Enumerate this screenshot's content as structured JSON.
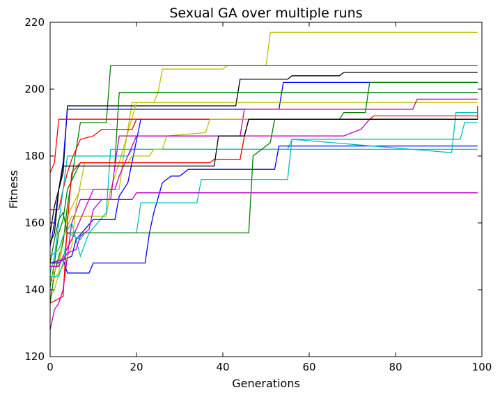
{
  "chart_data": {
    "type": "line",
    "title": "Sexual GA over multiple runs",
    "xlabel": "Generations",
    "ylabel": "Fitness",
    "xlim": [
      0,
      100
    ],
    "ylim": [
      120,
      220
    ],
    "x_ticks": [
      0,
      20,
      40,
      60,
      80,
      100
    ],
    "y_ticks": [
      120,
      140,
      160,
      180,
      200,
      220
    ],
    "grid": false,
    "legend": "none",
    "series": [
      {
        "color": "#bfbf00",
        "points": [
          [
            0,
            138
          ],
          [
            1,
            140
          ],
          [
            2,
            145
          ],
          [
            3,
            155
          ],
          [
            4,
            162
          ],
          [
            7,
            170
          ],
          [
            16,
            170
          ],
          [
            17,
            180
          ],
          [
            19,
            196
          ],
          [
            24,
            196
          ],
          [
            25,
            199
          ],
          [
            26,
            206
          ],
          [
            40,
            206
          ],
          [
            41,
            207
          ],
          [
            50,
            207
          ],
          [
            51,
            217
          ],
          [
            99,
            217
          ]
        ]
      },
      {
        "color": "#008000",
        "points": [
          [
            0,
            136
          ],
          [
            1,
            145
          ],
          [
            2,
            150
          ],
          [
            3,
            154
          ],
          [
            4,
            165
          ],
          [
            7,
            190
          ],
          [
            13,
            190
          ],
          [
            14,
            207
          ],
          [
            99,
            207
          ]
        ]
      },
      {
        "color": "#000000",
        "points": [
          [
            0,
            157
          ],
          [
            1,
            165
          ],
          [
            2,
            170
          ],
          [
            3,
            175
          ],
          [
            4,
            195
          ],
          [
            43,
            195
          ],
          [
            44,
            203
          ],
          [
            55,
            203
          ],
          [
            56,
            204
          ],
          [
            67,
            204
          ],
          [
            68,
            205
          ],
          [
            99,
            205
          ]
        ]
      },
      {
        "color": "#0000ff",
        "points": [
          [
            0,
            153
          ],
          [
            1,
            160
          ],
          [
            2,
            170
          ],
          [
            3,
            178
          ],
          [
            4,
            194
          ],
          [
            53,
            194
          ],
          [
            54,
            202
          ],
          [
            72,
            202
          ],
          [
            73,
            202
          ],
          [
            99,
            202
          ]
        ]
      },
      {
        "color": "#008000",
        "points": [
          [
            0,
            141
          ],
          [
            1,
            148
          ],
          [
            2,
            157
          ],
          [
            3,
            161
          ],
          [
            4,
            170
          ],
          [
            7,
            178
          ],
          [
            15,
            178
          ],
          [
            16,
            199
          ],
          [
            99,
            199
          ]
        ]
      },
      {
        "color": "#bfbf00",
        "points": [
          [
            0,
            143
          ],
          [
            2,
            148
          ],
          [
            3,
            156
          ],
          [
            5,
            162
          ],
          [
            13,
            162
          ],
          [
            14,
            170
          ],
          [
            16,
            178
          ],
          [
            20,
            196
          ],
          [
            80,
            196
          ],
          [
            99,
            196
          ]
        ]
      },
      {
        "color": "#ff0000",
        "points": [
          [
            0,
            175
          ],
          [
            1,
            178
          ],
          [
            2,
            191
          ],
          [
            99,
            191
          ],
          [
            99,
            195
          ]
        ]
      },
      {
        "color": "#ff0000",
        "points": [
          [
            0,
            164
          ],
          [
            2,
            164
          ],
          [
            3,
            170
          ],
          [
            4,
            175
          ],
          [
            5,
            179
          ],
          [
            7,
            185
          ],
          [
            10,
            186
          ],
          [
            12,
            188
          ],
          [
            19,
            188
          ],
          [
            20,
            191
          ],
          [
            74,
            191
          ],
          [
            75,
            192
          ],
          [
            99,
            192
          ]
        ]
      },
      {
        "color": "#bf00bf",
        "points": [
          [
            0,
            128
          ],
          [
            1,
            134
          ],
          [
            2,
            136
          ],
          [
            3,
            140
          ],
          [
            4,
            150
          ],
          [
            5,
            160
          ],
          [
            7,
            167
          ],
          [
            14,
            167
          ],
          [
            15,
            177
          ],
          [
            16,
            186
          ],
          [
            44,
            186
          ],
          [
            45,
            194
          ],
          [
            84,
            194
          ],
          [
            85,
            197
          ],
          [
            99,
            197
          ]
        ]
      },
      {
        "color": "#00bfbf",
        "points": [
          [
            0,
            145
          ],
          [
            1,
            150
          ],
          [
            2,
            160
          ],
          [
            3,
            170
          ],
          [
            4,
            180
          ],
          [
            18,
            180
          ],
          [
            19,
            182
          ],
          [
            40,
            182
          ],
          [
            54,
            182
          ],
          [
            55,
            182
          ],
          [
            99,
            182
          ]
        ]
      },
      {
        "color": "#00bfbf",
        "points": [
          [
            0,
            150
          ],
          [
            2,
            152
          ],
          [
            3,
            156
          ],
          [
            5,
            160
          ],
          [
            7,
            150
          ],
          [
            9,
            157
          ],
          [
            13,
            163
          ],
          [
            14,
            182
          ],
          [
            55,
            182
          ],
          [
            56,
            185
          ],
          [
            95,
            185
          ],
          [
            96,
            190
          ],
          [
            99,
            190
          ]
        ]
      },
      {
        "color": "#0000ff",
        "points": [
          [
            0,
            148
          ],
          [
            2,
            148
          ],
          [
            3,
            149
          ],
          [
            5,
            150
          ],
          [
            6,
            155
          ],
          [
            8,
            158
          ],
          [
            10,
            161
          ],
          [
            15,
            161
          ],
          [
            16,
            168
          ],
          [
            18,
            172
          ],
          [
            21,
            191
          ]
        ]
      },
      {
        "color": "#bfbf00",
        "points": [
          [
            0,
            142
          ],
          [
            2,
            145
          ],
          [
            3,
            147
          ],
          [
            5,
            153
          ],
          [
            6,
            165
          ],
          [
            8,
            178
          ],
          [
            18,
            178
          ],
          [
            19,
            180
          ],
          [
            23,
            180
          ],
          [
            24,
            182
          ],
          [
            26,
            182
          ],
          [
            27,
            186
          ],
          [
            36,
            187
          ],
          [
            37,
            191
          ],
          [
            99,
            191
          ]
        ]
      },
      {
        "color": "#bf00bf",
        "points": [
          [
            0,
            147
          ],
          [
            2,
            147
          ],
          [
            3,
            150
          ],
          [
            5,
            155
          ],
          [
            7,
            161
          ],
          [
            8,
            164
          ],
          [
            10,
            170
          ],
          [
            15,
            170
          ],
          [
            16,
            174
          ],
          [
            20,
            186
          ],
          [
            68,
            186
          ],
          [
            70,
            187
          ],
          [
            72,
            188
          ],
          [
            74,
            191
          ],
          [
            99,
            191
          ]
        ]
      },
      {
        "color": "#0000ff",
        "points": [
          [
            0,
            148
          ],
          [
            3,
            149
          ],
          [
            4,
            145
          ],
          [
            9,
            145
          ],
          [
            10,
            148
          ],
          [
            22,
            148
          ],
          [
            23,
            157
          ],
          [
            24,
            163
          ],
          [
            26,
            172
          ],
          [
            28,
            174
          ],
          [
            30,
            174
          ],
          [
            32,
            176
          ],
          [
            52,
            176
          ],
          [
            53,
            183
          ],
          [
            99,
            183
          ]
        ]
      },
      {
        "color": "#00bfbf",
        "points": [
          [
            0,
            144
          ],
          [
            2,
            144
          ],
          [
            3,
            148
          ],
          [
            4,
            157
          ],
          [
            7,
            155
          ],
          [
            8,
            157
          ],
          [
            20,
            157
          ],
          [
            21,
            166
          ],
          [
            34,
            166
          ],
          [
            35,
            173
          ],
          [
            55,
            173
          ],
          [
            56,
            185
          ],
          [
            93,
            181
          ],
          [
            94,
            193
          ],
          [
            99,
            193
          ]
        ]
      },
      {
        "color": "#008000",
        "points": [
          [
            0,
            148
          ],
          [
            1,
            155
          ],
          [
            2,
            161
          ],
          [
            3,
            163
          ],
          [
            4,
            157
          ],
          [
            46,
            157
          ],
          [
            47,
            180
          ],
          [
            49,
            182
          ],
          [
            51,
            184
          ],
          [
            52,
            191
          ],
          [
            67,
            191
          ],
          [
            68,
            193
          ],
          [
            73,
            193
          ],
          [
            74,
            202
          ],
          [
            99,
            202
          ]
        ]
      },
      {
        "color": "#ff0000",
        "points": [
          [
            0,
            136
          ],
          [
            3,
            138
          ],
          [
            4,
            160
          ],
          [
            5,
            175
          ],
          [
            7,
            178
          ],
          [
            37,
            178
          ],
          [
            38,
            179
          ],
          [
            44,
            179
          ],
          [
            45,
            186
          ],
          [
            46,
            191
          ],
          [
            99,
            191
          ]
        ]
      },
      {
        "color": "#000000",
        "points": [
          [
            0,
            154
          ],
          [
            1,
            157
          ],
          [
            2,
            170
          ],
          [
            3,
            177
          ],
          [
            38,
            177
          ],
          [
            39,
            186
          ],
          [
            45,
            186
          ],
          [
            46,
            191
          ],
          [
            74,
            191
          ],
          [
            75,
            191
          ],
          [
            99,
            191
          ]
        ]
      },
      {
        "color": "#bf00bf",
        "points": [
          [
            0,
            148
          ],
          [
            3,
            149
          ],
          [
            4,
            151
          ],
          [
            6,
            152
          ],
          [
            7,
            156
          ],
          [
            9,
            158
          ],
          [
            10,
            164
          ],
          [
            12,
            167
          ],
          [
            19,
            167
          ],
          [
            20,
            169
          ],
          [
            99,
            169
          ]
        ]
      }
    ]
  }
}
